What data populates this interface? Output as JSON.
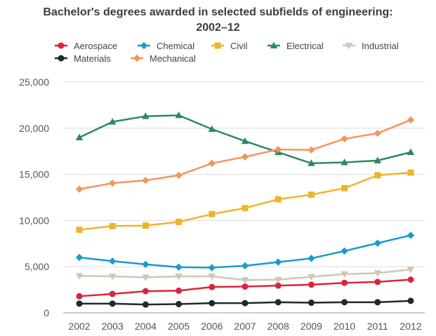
{
  "chart_data": {
    "type": "line",
    "title_line1": "Bachelor's degrees awarded in selected subfields of engineering:",
    "title_line2": "2002–12",
    "xlabel": "",
    "ylabel": "",
    "x": [
      "2002",
      "2003",
      "2004",
      "2005",
      "2006",
      "2007",
      "2008",
      "2009",
      "2010",
      "2011",
      "2012"
    ],
    "ylim": [
      0,
      25000
    ],
    "yticks": [
      0,
      5000,
      10000,
      15000,
      20000,
      25000
    ],
    "ytick_labels": [
      "0",
      "5,000",
      "10,000",
      "15,000",
      "20,000",
      "25,000"
    ],
    "grid": true,
    "legend_position": "top",
    "series": [
      {
        "name": "Aerospace",
        "color": "#d7263d",
        "marker": "circle",
        "values": [
          1800,
          2050,
          2350,
          2400,
          2800,
          2850,
          2950,
          3050,
          3250,
          3350,
          3600
        ]
      },
      {
        "name": "Chemical",
        "color": "#1a9cc8",
        "marker": "diamond",
        "values": [
          6000,
          5600,
          5250,
          4950,
          4900,
          5100,
          5500,
          5900,
          6700,
          7550,
          8400
        ]
      },
      {
        "name": "Civil",
        "color": "#f0b429",
        "marker": "square",
        "values": [
          9000,
          9400,
          9450,
          9850,
          10700,
          11350,
          12300,
          12800,
          13500,
          14900,
          15200
        ]
      },
      {
        "name": "Electrical",
        "color": "#2c8a5c",
        "marker": "triangle",
        "values": [
          19000,
          20700,
          21300,
          21400,
          19900,
          18600,
          17400,
          16200,
          16300,
          16500,
          17400
        ]
      },
      {
        "name": "Industrial",
        "color": "#cfc6b5",
        "marker": "triangle-down",
        "values": [
          4000,
          3950,
          3850,
          3950,
          3950,
          3550,
          3600,
          3900,
          4200,
          4300,
          4700
        ]
      },
      {
        "name": "Materials",
        "color": "#1c2b2a",
        "marker": "circle",
        "values": [
          1000,
          1000,
          900,
          950,
          1050,
          1050,
          1150,
          1100,
          1150,
          1150,
          1300
        ]
      },
      {
        "name": "Mechanical",
        "color": "#f4965a",
        "marker": "diamond",
        "values": [
          13400,
          14050,
          14350,
          14900,
          16200,
          16900,
          17700,
          17650,
          18850,
          19450,
          20900
        ]
      }
    ]
  }
}
